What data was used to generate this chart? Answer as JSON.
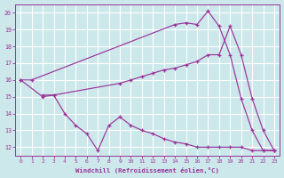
{
  "background_color": "#cce8eb",
  "grid_color": "#ffffff",
  "line_color": "#993399",
  "xlabel": "Windchill (Refroidissement éolien,°C)",
  "tick_color": "#993399",
  "xlim": [
    -0.5,
    23.5
  ],
  "ylim": [
    11.5,
    20.5
  ],
  "yticks": [
    12,
    13,
    14,
    15,
    16,
    17,
    18,
    19,
    20
  ],
  "xticks": [
    0,
    1,
    2,
    3,
    4,
    5,
    6,
    7,
    8,
    9,
    10,
    11,
    12,
    13,
    14,
    15,
    16,
    17,
    18,
    19,
    20,
    21,
    22,
    23
  ],
  "lineA_x": [
    0,
    1,
    14,
    15,
    16,
    17,
    18,
    19,
    20,
    21,
    22,
    23
  ],
  "lineA_y": [
    16.0,
    16.0,
    19.3,
    19.4,
    19.3,
    20.1,
    19.2,
    17.5,
    14.9,
    13.0,
    11.8,
    11.8
  ],
  "lineB_x": [
    0,
    2,
    3,
    9,
    10,
    11,
    12,
    13,
    14,
    15,
    16,
    17,
    18,
    19,
    20,
    21,
    22,
    23
  ],
  "lineB_y": [
    16.0,
    15.0,
    15.1,
    15.8,
    16.0,
    16.2,
    16.4,
    16.6,
    16.7,
    16.9,
    17.1,
    17.5,
    17.5,
    19.2,
    17.5,
    14.9,
    13.0,
    11.8
  ],
  "lineC_x": [
    2,
    3,
    4,
    5,
    6,
    7,
    8,
    9,
    10,
    11,
    12,
    13,
    14,
    15,
    16,
    17,
    18,
    19,
    20,
    21,
    22,
    23
  ],
  "lineC_y": [
    15.1,
    15.1,
    14.0,
    13.3,
    12.8,
    11.8,
    13.3,
    13.8,
    13.3,
    13.0,
    12.8,
    12.5,
    12.3,
    12.2,
    12.0,
    12.0,
    12.0,
    12.0,
    12.0,
    11.8,
    11.8,
    11.8
  ]
}
